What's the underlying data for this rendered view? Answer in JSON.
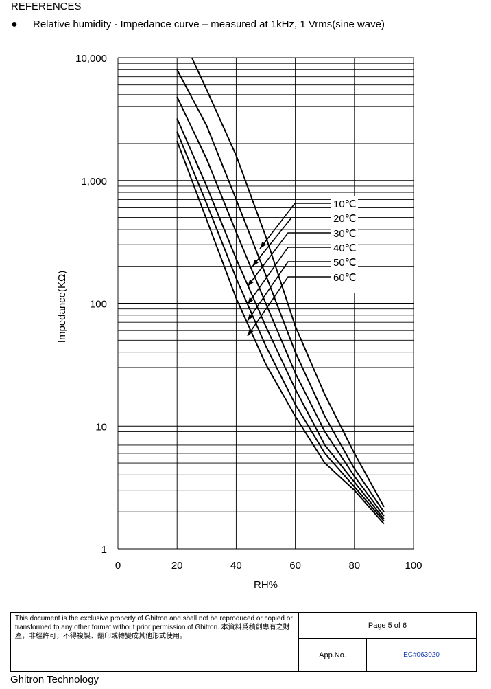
{
  "header": {
    "section_title": "REFERENCES",
    "bullet": "●",
    "subtitle": "Relative humidity - Impedance curve – measured at 1kHz, 1 Vrms(sine wave)"
  },
  "chart_data": {
    "type": "line",
    "xlabel": "RH%",
    "ylabel": "Impedance(KΩ)",
    "x_scale": "linear",
    "y_scale": "log",
    "xlim": [
      0,
      100
    ],
    "ylim": [
      1,
      10000
    ],
    "grid": true,
    "legend_placement": "center-right",
    "x_ticks": [
      "0",
      "20",
      "40",
      "60",
      "80",
      "100"
    ],
    "y_ticks": [
      {
        "value": 1,
        "label": "1"
      },
      {
        "value": 10,
        "label": "10"
      },
      {
        "value": 100,
        "label": "100"
      },
      {
        "value": 1000,
        "label": "1,000"
      },
      {
        "value": 10000,
        "label": "10,000"
      }
    ],
    "series": [
      {
        "name": "10℃",
        "points": [
          [
            25,
            10000
          ],
          [
            30,
            5500
          ],
          [
            40,
            1600
          ],
          [
            50,
            350
          ],
          [
            60,
            65
          ],
          [
            70,
            18
          ],
          [
            80,
            6
          ],
          [
            90,
            2.2
          ]
        ]
      },
      {
        "name": "20℃",
        "points": [
          [
            20,
            8000
          ],
          [
            30,
            2800
          ],
          [
            40,
            700
          ],
          [
            50,
            170
          ],
          [
            60,
            40
          ],
          [
            70,
            12
          ],
          [
            80,
            4.5
          ],
          [
            90,
            2.0
          ]
        ]
      },
      {
        "name": "30℃",
        "points": [
          [
            20,
            4800
          ],
          [
            30,
            1500
          ],
          [
            40,
            380
          ],
          [
            50,
            100
          ],
          [
            60,
            27
          ],
          [
            70,
            9
          ],
          [
            80,
            3.9
          ],
          [
            90,
            1.85
          ]
        ]
      },
      {
        "name": "40℃",
        "points": [
          [
            20,
            3200
          ],
          [
            30,
            900
          ],
          [
            40,
            230
          ],
          [
            50,
            65
          ],
          [
            60,
            20
          ],
          [
            70,
            7
          ],
          [
            80,
            3.5
          ],
          [
            90,
            1.75
          ]
        ]
      },
      {
        "name": "50℃",
        "points": [
          [
            20,
            2500
          ],
          [
            30,
            650
          ],
          [
            40,
            160
          ],
          [
            50,
            45
          ],
          [
            60,
            15
          ],
          [
            70,
            6
          ],
          [
            80,
            3.2
          ],
          [
            90,
            1.68
          ]
        ]
      },
      {
        "name": "60℃",
        "points": [
          [
            20,
            2100
          ],
          [
            30,
            480
          ],
          [
            40,
            110
          ],
          [
            50,
            32
          ],
          [
            60,
            12
          ],
          [
            70,
            5
          ],
          [
            80,
            3.0
          ],
          [
            90,
            1.6
          ]
        ]
      }
    ]
  },
  "footer": {
    "notice": "This document is the exclusive property of Ghitron and shall not be reproduced or copied or transformed to any other format without prior permission of Ghitron. 本資料爲積創專有之財產，非經許可，不得複製、翻印或轉變成其他形式使用。",
    "page_label": "Page 5 of 6",
    "app_no_label": "App.No.",
    "ec_number": "EC#063020",
    "company": "Ghitron Technology"
  }
}
